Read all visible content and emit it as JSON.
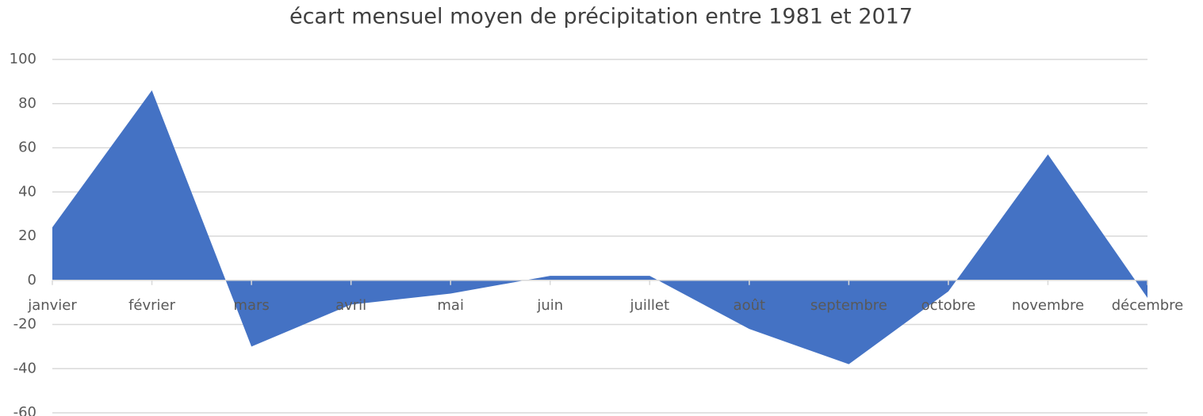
{
  "chart_data": {
    "type": "area",
    "title": "écart mensuel moyen de précipitation entre 1981 et 2017",
    "categories": [
      "janvier",
      "février",
      "mars",
      "avril",
      "mai",
      "juin",
      "juillet",
      "août",
      "septembre",
      "octobre",
      "novembre",
      "décembre"
    ],
    "values": [
      24,
      86,
      -30,
      -11,
      -6,
      2,
      2,
      -22,
      -38,
      -5,
      57,
      -8
    ],
    "color": "#4472c4",
    "ylim": [
      -60,
      100
    ],
    "yticks": [
      -60,
      -40,
      -20,
      0,
      20,
      40,
      60,
      80,
      100
    ],
    "grid": true
  }
}
